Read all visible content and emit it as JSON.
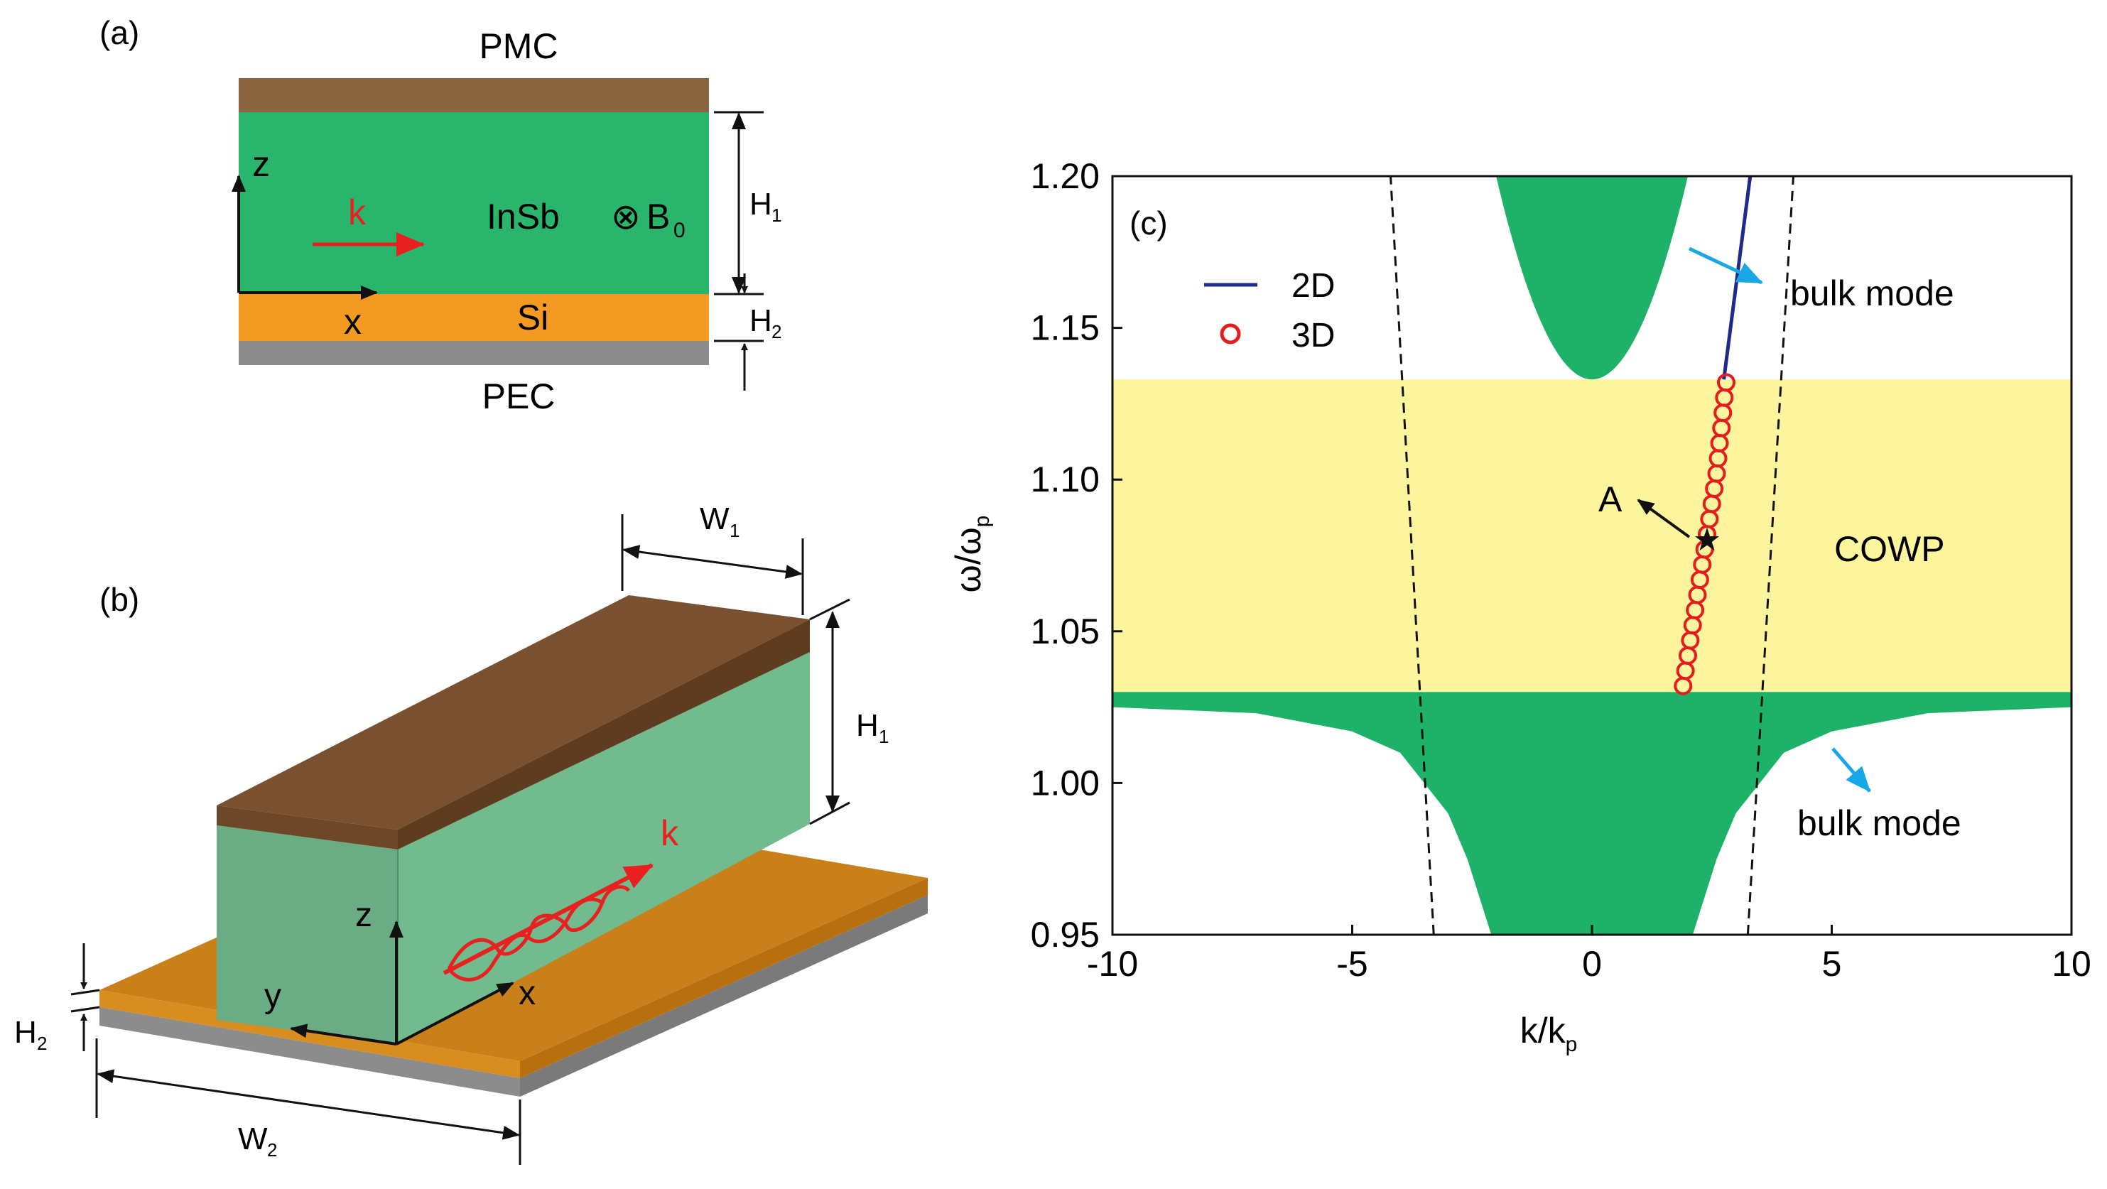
{
  "panel_a": {
    "label": "(a)",
    "pmc": "PMC",
    "pec": "PEC",
    "insb": "InSb",
    "si": "Si",
    "b0_symbol": "⊗",
    "b0_letter": "B",
    "b0_sub": "0",
    "k": "k",
    "z": "z",
    "x": "x",
    "h1_letter": "H",
    "h1_sub": "1",
    "h2_letter": "H",
    "h2_sub": "2",
    "colors": {
      "pmc": "#8a6540",
      "insb": "#2ab56d",
      "si": "#f39a22",
      "pec": "#8c8c8c",
      "k_arrow": "#e8201f"
    }
  },
  "panel_b": {
    "label": "(b)",
    "w1_letter": "W",
    "w1_sub": "1",
    "w2_letter": "W",
    "w2_sub": "2",
    "h1_letter": "H",
    "h1_sub": "1",
    "h2_letter": "H",
    "h2_sub": "2",
    "k": "k",
    "z": "z",
    "y": "y",
    "x": "x",
    "colors": {
      "top": "#7a5130",
      "front": "#6aac84",
      "side": "#72bb8e",
      "si_top": "#c9801a",
      "si_side": "#b86f10",
      "pec": "#8c8c8c",
      "wave": "#e8201f"
    }
  },
  "panel_c": {
    "label": "(c)",
    "colors": {
      "bulk": "#1eb168",
      "cowp": "#fdf59e",
      "line_2d": "#1f2a8c",
      "circle_3d": "#e41c1c",
      "dashed": "#111111",
      "annot_arrow": "#1aa7e8"
    },
    "chart_data": {
      "type": "line",
      "xlabel": "k/k_p",
      "ylabel": "ω/ω_p",
      "xlabel_main": "k/k",
      "xlabel_sub": "p",
      "ylabel_main": "ω/ω",
      "ylabel_sub": "p",
      "xlim": [
        -10,
        10
      ],
      "ylim": [
        0.95,
        1.2
      ],
      "xticks": [
        -10,
        -5,
        0,
        5,
        10
      ],
      "xtick_labels": [
        "-10",
        "-5",
        "0",
        "5",
        "10"
      ],
      "yticks": [
        0.95,
        1.0,
        1.05,
        1.1,
        1.15,
        1.2
      ],
      "ytick_labels": [
        "0.95",
        "1.00",
        "1.05",
        "1.10",
        "1.15",
        "1.20"
      ],
      "legend": [
        {
          "name": "2D",
          "style": "line"
        },
        {
          "name": "3D",
          "style": "circle"
        }
      ],
      "cowp_band": {
        "ymin": 1.03,
        "ymax": 1.133,
        "label": "COWP"
      },
      "upper_bulk_parabola": {
        "vertex_k": 0.0,
        "vertex_w": 1.133,
        "k_at_top": 2.0,
        "w_top": 1.2
      },
      "lower_bulk_region": {
        "flat_level": 1.03,
        "boundary": [
          [
            -10,
            1.025
          ],
          [
            -7,
            1.023
          ],
          [
            -5,
            1.017
          ],
          [
            -4,
            1.01
          ],
          [
            -3.5,
            1.0
          ],
          [
            -3,
            0.99
          ],
          [
            -2.6,
            0.975
          ],
          [
            -2.3,
            0.96
          ],
          [
            -2.1,
            0.95
          ],
          [
            2.1,
            0.95
          ],
          [
            2.3,
            0.96
          ],
          [
            2.6,
            0.975
          ],
          [
            3,
            0.99
          ],
          [
            3.5,
            1.0
          ],
          [
            4,
            1.01
          ],
          [
            5,
            1.017
          ],
          [
            7,
            1.023
          ],
          [
            10,
            1.025
          ]
        ]
      },
      "light_lines": [
        {
          "k_at_ymin": -3.3,
          "k_at_ymax": -4.2
        },
        {
          "k_at_ymin": 3.25,
          "k_at_ymax": 4.2
        }
      ],
      "series": [
        {
          "name": "2D",
          "points": [
            [
              2.75,
              1.133
            ],
            [
              3.3,
              1.2
            ]
          ]
        },
        {
          "name": "3D",
          "points": [
            [
              1.9,
              1.032
            ],
            [
              1.95,
              1.037
            ],
            [
              2.0,
              1.042
            ],
            [
              2.05,
              1.047
            ],
            [
              2.1,
              1.052
            ],
            [
              2.15,
              1.057
            ],
            [
              2.2,
              1.062
            ],
            [
              2.25,
              1.067
            ],
            [
              2.3,
              1.072
            ],
            [
              2.35,
              1.077
            ],
            [
              2.4,
              1.082
            ],
            [
              2.45,
              1.087
            ],
            [
              2.5,
              1.092
            ],
            [
              2.55,
              1.097
            ],
            [
              2.6,
              1.102
            ],
            [
              2.63,
              1.107
            ],
            [
              2.66,
              1.112
            ],
            [
              2.7,
              1.117
            ],
            [
              2.73,
              1.122
            ],
            [
              2.76,
              1.127
            ],
            [
              2.8,
              1.132
            ]
          ]
        }
      ],
      "point_a": {
        "label": "A",
        "k": 2.4,
        "w": 1.08
      },
      "annotations": [
        {
          "text": "bulk mode",
          "position": "upper-right"
        },
        {
          "text": "bulk mode",
          "position": "lower-right"
        }
      ]
    }
  }
}
